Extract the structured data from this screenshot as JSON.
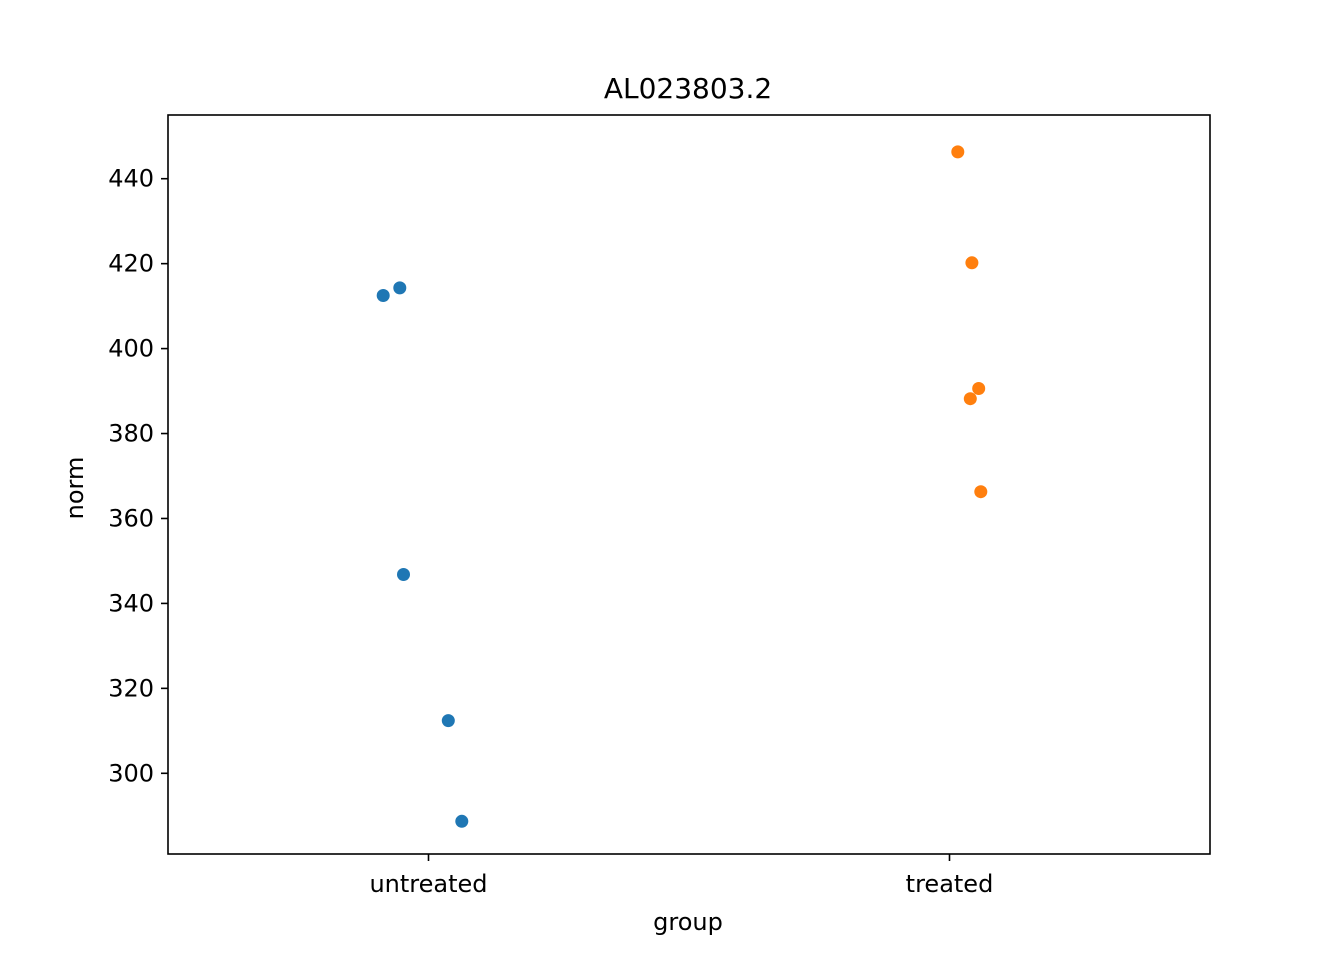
{
  "chart_data": {
    "type": "scatter",
    "title": "AL023803.2",
    "xlabel": "group",
    "ylabel": "norm",
    "categories": [
      "untreated",
      "treated"
    ],
    "ylim": [
      281,
      455
    ],
    "yticks": [
      300,
      320,
      340,
      360,
      380,
      400,
      420,
      440
    ],
    "grid": false,
    "legend": "none",
    "series": [
      {
        "category": "untreated",
        "color": "#1f77b4",
        "points": [
          {
            "jitter": -0.087,
            "y": 412.5
          },
          {
            "jitter": -0.055,
            "y": 414.3
          },
          {
            "jitter": -0.048,
            "y": 346.8
          },
          {
            "jitter": 0.038,
            "y": 312.4
          },
          {
            "jitter": 0.064,
            "y": 288.7
          }
        ]
      },
      {
        "category": "treated",
        "color": "#ff7f0e",
        "points": [
          {
            "jitter": 0.016,
            "y": 446.3
          },
          {
            "jitter": 0.043,
            "y": 420.2
          },
          {
            "jitter": 0.056,
            "y": 390.6
          },
          {
            "jitter": 0.04,
            "y": 388.2
          },
          {
            "jitter": 0.06,
            "y": 366.3
          }
        ]
      }
    ]
  }
}
